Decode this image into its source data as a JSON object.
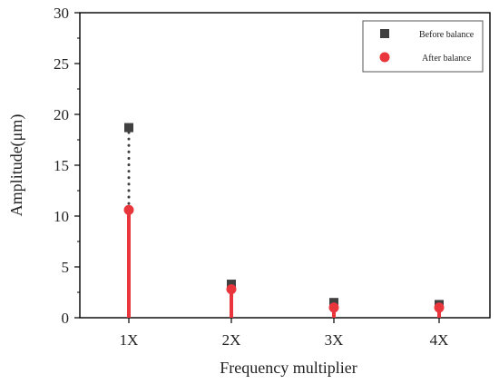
{
  "chart_data": {
    "type": "scatter",
    "title": "",
    "xlabel": "Frequency multiplier",
    "ylabel": "Amplitude(μm)",
    "categories": [
      "1X",
      "2X",
      "3X",
      "4X"
    ],
    "ylim": [
      0,
      30
    ],
    "yticks": [
      0,
      5,
      10,
      15,
      20,
      25,
      30
    ],
    "grid": false,
    "legend_position": "top-right",
    "series": [
      {
        "name": "Before balance",
        "values": [
          18.7,
          3.3,
          1.5,
          1.3
        ],
        "marker": "square",
        "color": "#404040"
      },
      {
        "name": "After balance",
        "values": [
          10.6,
          2.8,
          1.0,
          1.0
        ],
        "marker": "circle",
        "color": "#e8363c"
      }
    ]
  }
}
